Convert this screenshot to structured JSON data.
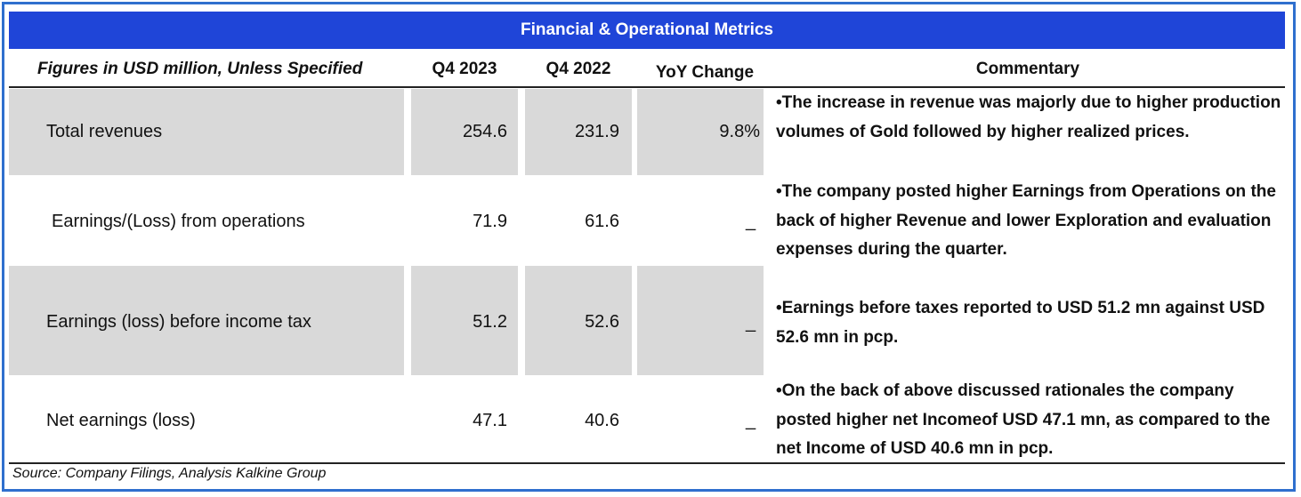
{
  "title": "Financial & Operational Metrics",
  "header": {
    "label": "Figures in USD million, Unless Specified",
    "q4_2023": "Q4 2023",
    "q4_2022": "Q4 2022",
    "yoy": "YoY Change",
    "commentary": "Commentary"
  },
  "rows": [
    {
      "label": "Total revenues",
      "q4_2023": "254.6",
      "q4_2022": "231.9",
      "yoy": "9.8%",
      "commentary": "•The increase in revenue was majorly due to higher production volumes of Gold followed  by higher realized prices."
    },
    {
      "label": "Earnings/(Loss) from operations",
      "q4_2023": "71.9",
      "q4_2022": "61.6",
      "yoy": "_",
      "commentary": "•The company posted higher Earnings from Operations on the back of higher Revenue and lower Exploration and evaluation expenses during the quarter."
    },
    {
      "label": "Earnings (loss) before income tax",
      "q4_2023": "51.2",
      "q4_2022": "52.6",
      "yoy": "_",
      "commentary": "•Earnings before taxes reported to USD 51.2 mn against USD 52.6 mn in pcp."
    },
    {
      "label": "Net earnings (loss)",
      "q4_2023": "47.1",
      "q4_2022": "40.6",
      "yoy": "_",
      "commentary": "•On the back of above discussed rationales the company posted higher net Incomeof USD 47.1 mn, as compared to the net Income of USD 40.6 mn in pcp."
    }
  ],
  "source": "Source: Company Filings, Analysis Kalkine Group",
  "colors": {
    "title_bg": "#1f45d8",
    "frame": "#2f6fce",
    "shaded_row": "#d9d9d9"
  }
}
